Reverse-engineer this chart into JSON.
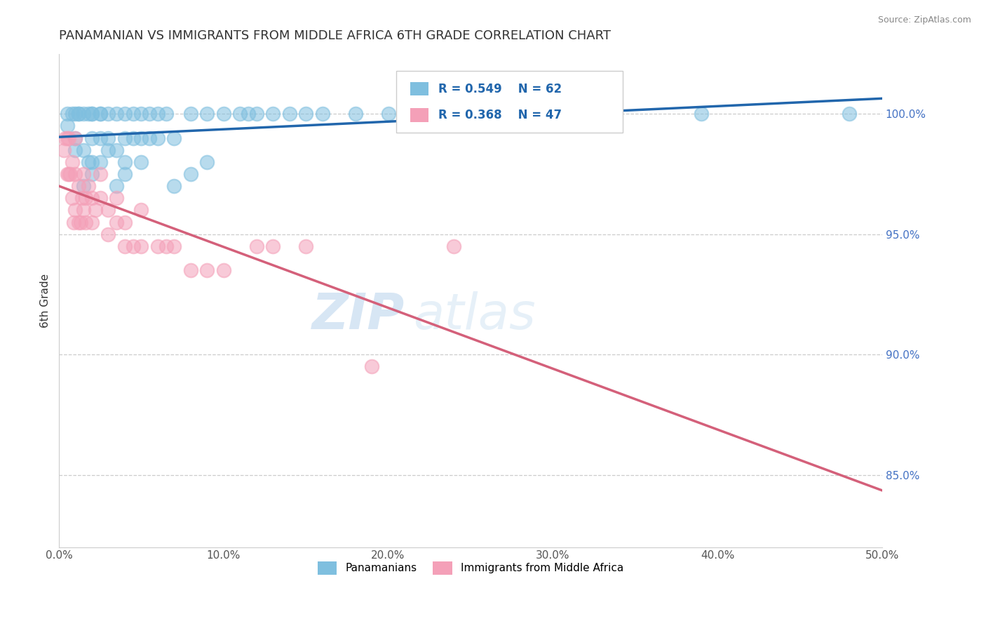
{
  "title": "PANAMANIAN VS IMMIGRANTS FROM MIDDLE AFRICA 6TH GRADE CORRELATION CHART",
  "source": "Source: ZipAtlas.com",
  "ylabel": "6th Grade",
  "ytick_labels": [
    "100.0%",
    "95.0%",
    "90.0%",
    "85.0%"
  ],
  "ytick_values": [
    1.0,
    0.95,
    0.9,
    0.85
  ],
  "xlim": [
    0.0,
    0.5
  ],
  "ylim": [
    0.82,
    1.025
  ],
  "legend_blue_label": "Panamanians",
  "legend_pink_label": "Immigrants from Middle Africa",
  "R_blue": 0.549,
  "N_blue": 62,
  "R_pink": 0.368,
  "N_pink": 47,
  "blue_color": "#7fbfdf",
  "pink_color": "#f4a0b8",
  "blue_line_color": "#2166ac",
  "pink_line_color": "#d4607a",
  "watermark_zip": "ZIP",
  "watermark_atlas": "atlas",
  "blue_points_x": [
    0.005,
    0.005,
    0.008,
    0.01,
    0.01,
    0.01,
    0.012,
    0.012,
    0.015,
    0.015,
    0.015,
    0.018,
    0.018,
    0.02,
    0.02,
    0.02,
    0.02,
    0.02,
    0.025,
    0.025,
    0.025,
    0.025,
    0.03,
    0.03,
    0.03,
    0.035,
    0.035,
    0.035,
    0.04,
    0.04,
    0.04,
    0.04,
    0.045,
    0.045,
    0.05,
    0.05,
    0.05,
    0.055,
    0.055,
    0.06,
    0.06,
    0.065,
    0.07,
    0.07,
    0.08,
    0.08,
    0.09,
    0.09,
    0.1,
    0.11,
    0.115,
    0.12,
    0.13,
    0.14,
    0.15,
    0.16,
    0.18,
    0.2,
    0.24,
    0.27,
    0.39,
    0.48
  ],
  "blue_points_y": [
    0.995,
    1.0,
    1.0,
    0.985,
    0.99,
    1.0,
    1.0,
    1.0,
    0.97,
    0.985,
    1.0,
    0.98,
    1.0,
    0.975,
    0.98,
    0.99,
    1.0,
    1.0,
    0.98,
    0.99,
    1.0,
    1.0,
    0.985,
    0.99,
    1.0,
    0.97,
    0.985,
    1.0,
    0.975,
    0.98,
    0.99,
    1.0,
    0.99,
    1.0,
    0.98,
    0.99,
    1.0,
    0.99,
    1.0,
    0.99,
    1.0,
    1.0,
    0.97,
    0.99,
    0.975,
    1.0,
    0.98,
    1.0,
    1.0,
    1.0,
    1.0,
    1.0,
    1.0,
    1.0,
    1.0,
    1.0,
    1.0,
    1.0,
    1.0,
    1.0,
    1.0,
    1.0
  ],
  "pink_points_x": [
    0.003,
    0.004,
    0.005,
    0.005,
    0.006,
    0.006,
    0.007,
    0.008,
    0.008,
    0.009,
    0.01,
    0.01,
    0.01,
    0.012,
    0.012,
    0.013,
    0.014,
    0.015,
    0.015,
    0.016,
    0.016,
    0.018,
    0.02,
    0.02,
    0.022,
    0.025,
    0.025,
    0.03,
    0.03,
    0.035,
    0.035,
    0.04,
    0.04,
    0.045,
    0.05,
    0.05,
    0.06,
    0.065,
    0.07,
    0.08,
    0.09,
    0.1,
    0.12,
    0.13,
    0.15,
    0.19,
    0.24
  ],
  "pink_points_y": [
    0.985,
    0.99,
    0.975,
    0.99,
    0.975,
    0.99,
    0.975,
    0.965,
    0.98,
    0.955,
    0.96,
    0.975,
    0.99,
    0.955,
    0.97,
    0.955,
    0.965,
    0.96,
    0.975,
    0.955,
    0.965,
    0.97,
    0.955,
    0.965,
    0.96,
    0.965,
    0.975,
    0.95,
    0.96,
    0.955,
    0.965,
    0.945,
    0.955,
    0.945,
    0.945,
    0.96,
    0.945,
    0.945,
    0.945,
    0.935,
    0.935,
    0.935,
    0.945,
    0.945,
    0.945,
    0.895,
    0.945
  ]
}
